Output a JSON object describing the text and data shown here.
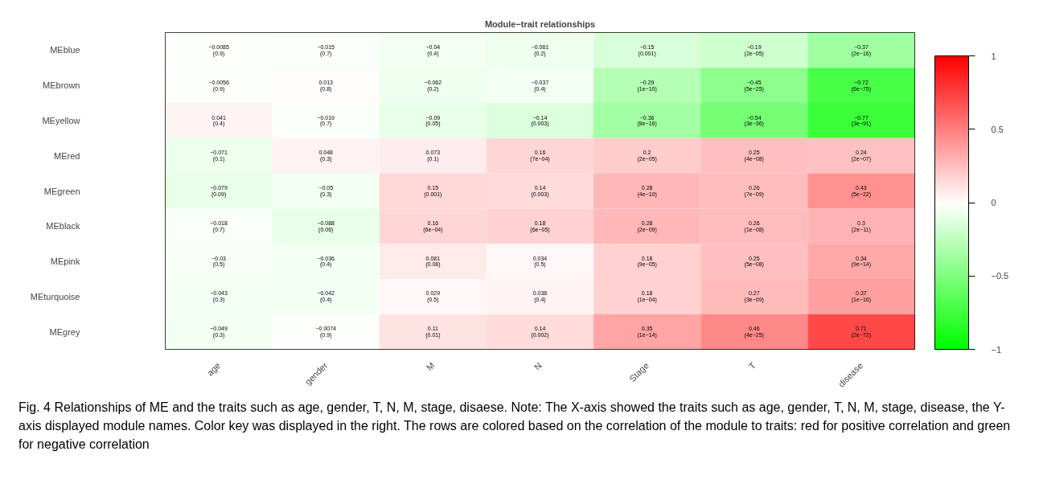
{
  "chart_data": {
    "type": "heatmap",
    "title": "Module−trait relationships",
    "categories": [
      "age",
      "gender",
      "M",
      "N",
      "Stage",
      "T",
      "disease"
    ],
    "y_categories": [
      "MEblue",
      "MEbrown",
      "MEyellow",
      "MEred",
      "MEgreen",
      "MEblack",
      "MEpink",
      "MEturquoise",
      "MEgrey"
    ],
    "cells": [
      [
        -0.0085,
        -0.015,
        -0.04,
        -0.061,
        -0.15,
        -0.19,
        -0.37
      ],
      [
        -0.0056,
        0.013,
        -0.062,
        -0.037,
        -0.29,
        -0.45,
        -0.72
      ],
      [
        0.041,
        -0.019,
        -0.09,
        -0.14,
        -0.36,
        -0.54,
        -0.77
      ],
      [
        -0.071,
        0.048,
        0.073,
        0.16,
        0.2,
        0.25,
        0.24
      ],
      [
        -0.079,
        -0.05,
        0.15,
        0.14,
        0.28,
        0.26,
        0.43
      ],
      [
        -0.018,
        -0.088,
        0.16,
        0.18,
        0.28,
        0.26,
        0.3
      ],
      [
        -0.03,
        -0.036,
        0.081,
        0.034,
        0.18,
        0.25,
        0.34
      ],
      [
        -0.043,
        -0.042,
        0.029,
        0.038,
        0.18,
        0.27,
        0.37
      ],
      [
        -0.049,
        -0.0074,
        0.11,
        0.14,
        0.35,
        0.46,
        0.71
      ]
    ],
    "cell_labels": [
      [
        "−0.0085\n(0.9)",
        "−0.015\n(0.7)",
        "−0.04\n(0.4)",
        "−0.061\n(0.2)",
        "−0.15\n(0.001)",
        "−0.19\n(2e−05)",
        "−0.37\n(2e−16)"
      ],
      [
        "−0.0056\n(0.9)",
        "0.013\n(0.8)",
        "−0.062\n(0.2)",
        "−0.037\n(0.4)",
        "−0.29\n(1e−10)",
        "−0.45\n(5e−25)",
        "−0.72\n(6e−75)"
      ],
      [
        "0.041\n(0.4)",
        "−0.019\n(0.7)",
        "−0.09\n(0.05)",
        "−0.14\n(0.003)",
        "−0.36\n(8e−16)",
        "−0.54\n(3e−36)",
        "−0.77\n(3e−91)"
      ],
      [
        "−0.071\n(0.1)",
        "0.048\n(0.3)",
        "0.073\n(0.1)",
        "0.16\n(7e−04)",
        "0.2\n(2e−05)",
        "0.25\n(4e−08)",
        "0.24\n(2e−07)"
      ],
      [
        "−0.079\n(0.09)",
        "−0.05\n(0.3)",
        "0.15\n(0.001)",
        "0.14\n(0.003)",
        "0.28\n(4e−10)",
        "0.26\n(7e−09)",
        "0.43\n(5e−22)"
      ],
      [
        "−0.018\n(0.7)",
        "−0.088\n(0.06)",
        "0.16\n(6e−04)",
        "0.18\n(6e−05)",
        "0.28\n(2e−09)",
        "0.26\n(1e−08)",
        "0.3\n(2e−11)"
      ],
      [
        "−0.03\n(0.5)",
        "−0.036\n(0.4)",
        "0.081\n(0.08)",
        "0.034\n(0.5)",
        "0.18\n(9e−05)",
        "0.25\n(5e−08)",
        "0.34\n(9e−14)"
      ],
      [
        "−0.043\n(0.3)",
        "−0.042\n(0.4)",
        "0.029\n(0.5)",
        "0.038\n(0.4)",
        "0.18\n(1e−04)",
        "0.27\n(3e−09)",
        "0.37\n(1e−16)"
      ],
      [
        "−0.049\n(0.3)",
        "−0.0074\n(0.9)",
        "0.11\n(0.01)",
        "0.14\n(0.002)",
        "0.35\n(1e−14)",
        "0.46\n(4e−25)",
        "0.71\n(2e−72)"
      ]
    ],
    "clim": [
      -1,
      1
    ],
    "cticks": [
      {
        "value": -1,
        "label": "−1"
      },
      {
        "value": -0.5,
        "label": "−0.5"
      },
      0,
      0.5,
      1
    ],
    "annotations": [
      "Fig. 4  Relationships of ME and the traits such as age, gender, T, N, M, stage, disaese. Note: The X-axis showed the traits such as age, gender, T, N, M, stage, disease, the Y-axis displayed module names. Color key was displayed in the right. The rows are colored based on the correlation of the module to traits: red for positive correlation and green for negative correlation"
    ]
  }
}
